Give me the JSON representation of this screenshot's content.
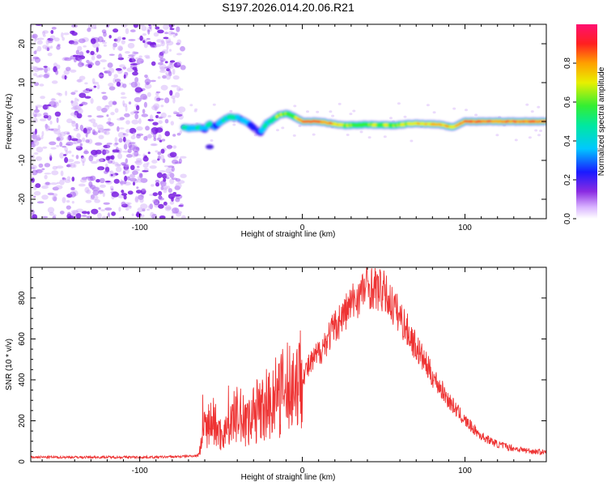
{
  "title": "S197.2026.014.20.06.R21",
  "chart_data": [
    {
      "type": "heatmap",
      "xlabel": "Height of straight line (km)",
      "ylabel": "Frequency (Hz)",
      "xlim": [
        -167,
        150
      ],
      "ylim": [
        -25,
        25
      ],
      "xticks": [
        -100,
        0,
        100
      ],
      "yticks": [
        -20,
        -10,
        0,
        10,
        20
      ],
      "colorbar": {
        "label": "Normalized spectral amplitude",
        "range": [
          0,
          1
        ],
        "ticks": [
          "0.0",
          "0.2",
          "0.4",
          "0.6",
          "0.8"
        ]
      },
      "noise_region_x": [
        -167,
        -73
      ],
      "ridge": {
        "x": [
          -73,
          -68,
          -63,
          -60,
          -57,
          -54,
          -50,
          -45,
          -40,
          -35,
          -30,
          -26,
          -22,
          -18,
          -14,
          -10,
          -6,
          0,
          10,
          25,
          40,
          55,
          70,
          85,
          92,
          100,
          115,
          130,
          150
        ],
        "freq": [
          -1.5,
          -1.8,
          -1.5,
          -2.0,
          -0.5,
          -1.5,
          0.0,
          1.2,
          1.0,
          0.0,
          -1.5,
          -3.0,
          -0.5,
          0.5,
          1.8,
          2.0,
          1.5,
          0.0,
          0.0,
          -1.0,
          -0.8,
          -1.0,
          -0.5,
          -0.8,
          -1.5,
          0.0,
          0.0,
          0.0,
          0.0
        ],
        "amplitude": [
          0.45,
          0.55,
          0.5,
          0.4,
          0.5,
          0.35,
          0.45,
          0.55,
          0.5,
          0.35,
          0.3,
          0.35,
          0.5,
          0.6,
          0.75,
          0.7,
          0.65,
          0.95,
          0.95,
          0.75,
          0.7,
          0.72,
          0.8,
          0.85,
          0.75,
          0.95,
          0.9,
          0.92,
          0.95
        ]
      }
    },
    {
      "type": "line",
      "xlabel": "Height of straight line (km)",
      "ylabel": "SNR (10 * v/v)",
      "xlim": [
        -167,
        150
      ],
      "ylim": [
        0,
        950
      ],
      "xticks": [
        -100,
        0,
        100
      ],
      "yticks": [
        0,
        200,
        400,
        600,
        800
      ],
      "series": [
        {
          "name": "SNR",
          "color": "#ee3333",
          "x": [
            -167,
            -150,
            -130,
            -110,
            -90,
            -75,
            -64,
            -60,
            -55,
            -50,
            -45,
            -40,
            -35,
            -30,
            -25,
            -20,
            -15,
            -10,
            -5,
            0,
            10,
            20,
            30,
            40,
            50,
            60,
            70,
            80,
            90,
            100,
            110,
            120,
            130,
            140,
            150
          ],
          "y": [
            22,
            22,
            22,
            22,
            22,
            25,
            30,
            170,
            200,
            130,
            180,
            230,
            200,
            230,
            270,
            300,
            320,
            350,
            390,
            420,
            530,
            660,
            770,
            860,
            830,
            710,
            560,
            420,
            300,
            200,
            125,
            85,
            65,
            52,
            45
          ]
        }
      ]
    }
  ]
}
